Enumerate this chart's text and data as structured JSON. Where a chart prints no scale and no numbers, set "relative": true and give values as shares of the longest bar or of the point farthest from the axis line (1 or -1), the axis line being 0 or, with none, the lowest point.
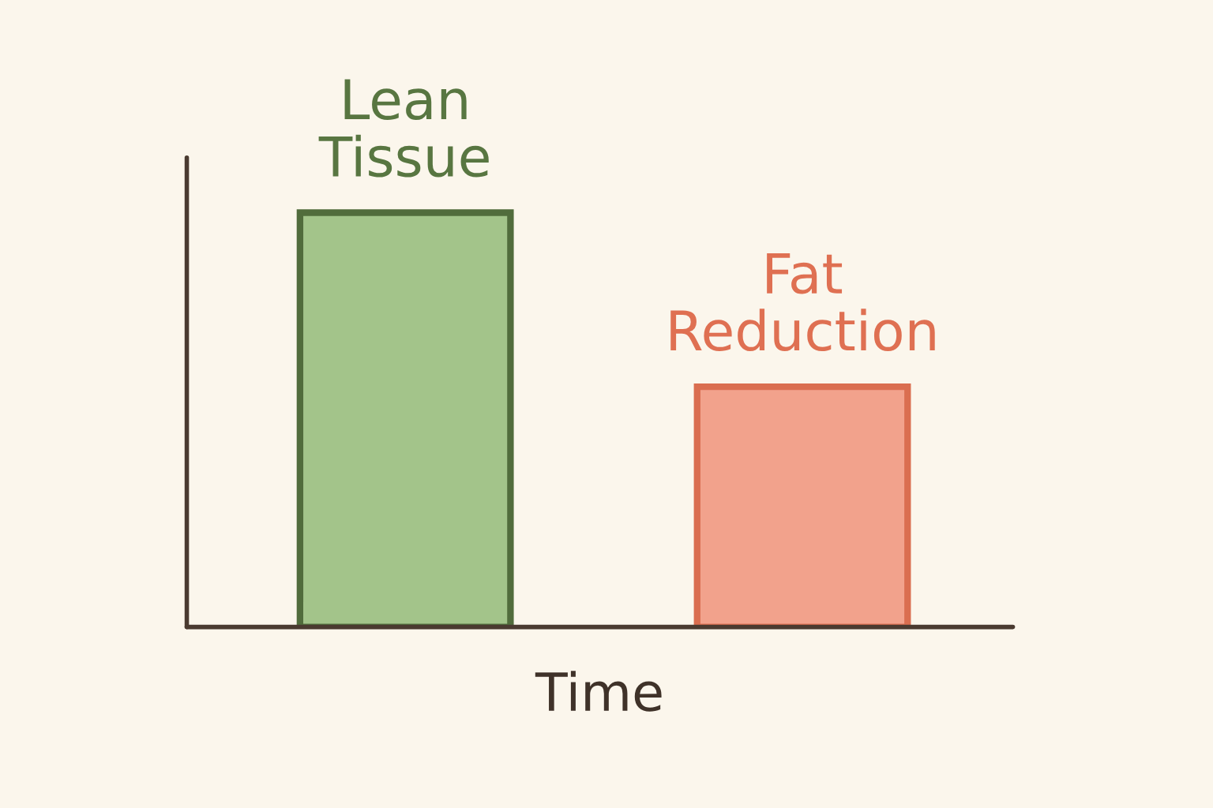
{
  "chart_data": {
    "type": "bar",
    "relative": true,
    "categories": [
      "Lean Tissue",
      "Fat Reduction"
    ],
    "values": [
      1,
      0.58
    ],
    "colors": [
      "#a3c48a",
      "#f2a28c"
    ],
    "xlabel": "Time"
  }
}
